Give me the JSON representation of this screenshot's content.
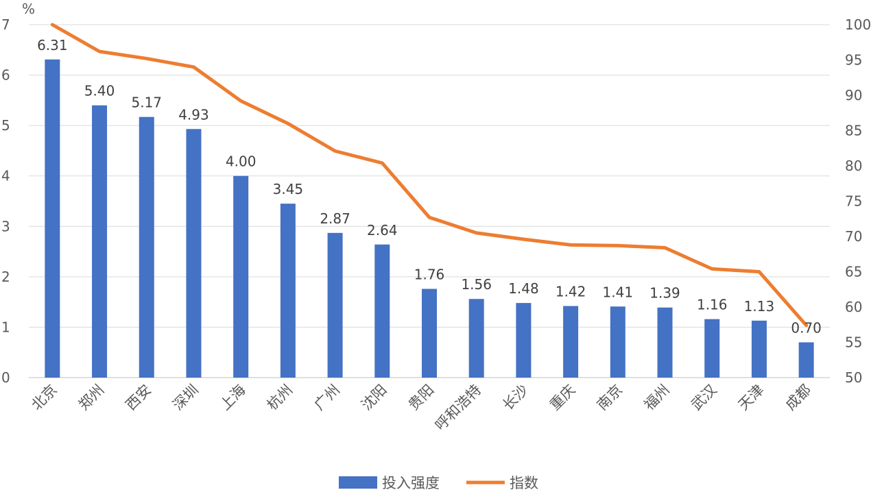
{
  "chart_data": {
    "type": "bar",
    "unit_label": "%",
    "categories": [
      "北京",
      "郑州",
      "西安",
      "深圳",
      "上海",
      "杭州",
      "广州",
      "沈阳",
      "贵阳",
      "呼和浩特",
      "长沙",
      "重庆",
      "南京",
      "福州",
      "武汉",
      "天津",
      "成都"
    ],
    "series": [
      {
        "name": "投入强度",
        "type": "bar",
        "axis": "left",
        "color": "#4472C4",
        "values": [
          6.31,
          5.4,
          5.17,
          4.93,
          4.0,
          3.45,
          2.87,
          2.64,
          1.76,
          1.56,
          1.48,
          1.42,
          1.41,
          1.39,
          1.16,
          1.13,
          0.7
        ],
        "labels": [
          "6.31",
          "5.40",
          "5.17",
          "4.93",
          "4.00",
          "3.45",
          "2.87",
          "2.64",
          "1.76",
          "1.56",
          "1.48",
          "1.42",
          "1.41",
          "1.39",
          "1.16",
          "1.13",
          "0.70"
        ]
      },
      {
        "name": "指数",
        "type": "line",
        "axis": "right",
        "color": "#ED7D31",
        "values": [
          100,
          96.2,
          95.2,
          94.0,
          89.2,
          86.0,
          82.1,
          80.4,
          72.7,
          70.5,
          69.6,
          68.8,
          68.7,
          68.4,
          65.4,
          65.0,
          57.4
        ]
      }
    ],
    "y_left": {
      "min": 0,
      "max": 7,
      "step": 1,
      "ticks": [
        "0",
        "1",
        "2",
        "3",
        "4",
        "5",
        "6",
        "7"
      ]
    },
    "y_right": {
      "min": 50,
      "max": 100,
      "step": 5,
      "ticks": [
        "50",
        "55",
        "60",
        "65",
        "70",
        "75",
        "80",
        "85",
        "90",
        "95",
        "100"
      ]
    },
    "grid": true,
    "legend_position": "bottom"
  }
}
